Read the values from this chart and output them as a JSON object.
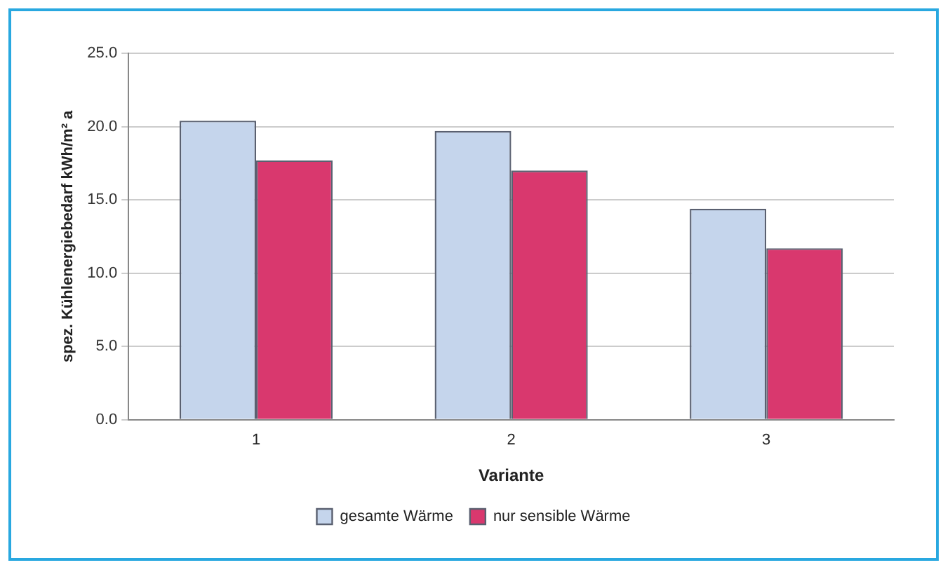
{
  "chart_data": {
    "type": "bar",
    "xlabel": "Variante",
    "ylabel": "spez. Kühlenergiebedarf kWh/m² a",
    "categories": [
      "1",
      "2",
      "3"
    ],
    "series": [
      {
        "name": "gesamte Wärme",
        "color": "#c5d5ec",
        "values": [
          20.4,
          19.7,
          14.4
        ]
      },
      {
        "name": "nur sensible Wärme",
        "color": "#d9386e",
        "values": [
          17.7,
          17.0,
          11.7
        ]
      }
    ],
    "ylim": [
      0,
      25
    ],
    "yticks": [
      {
        "value": 0,
        "label": "0.0"
      },
      {
        "value": 5,
        "label": "5.0"
      },
      {
        "value": 10,
        "label": "10.0"
      },
      {
        "value": 15,
        "label": "15.0"
      },
      {
        "value": 20,
        "label": "20.0"
      },
      {
        "value": 25,
        "label": "25.0"
      }
    ],
    "grid": "y",
    "legend": "bottom"
  }
}
